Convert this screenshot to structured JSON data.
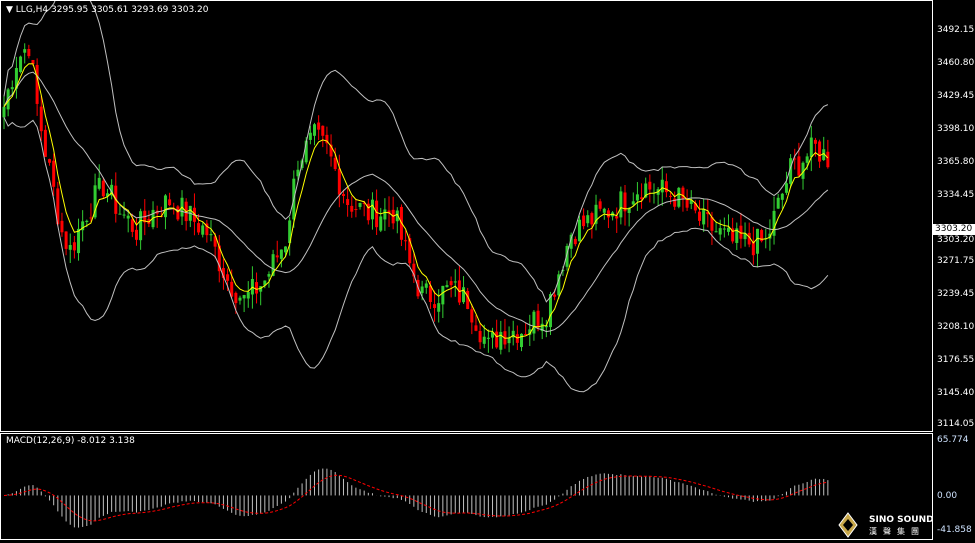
{
  "header": {
    "symbol": "LLG,H4",
    "ohlc": "3295.95 3305.61 3293.69 3303.20"
  },
  "price_axis": {
    "ticks": [
      "3492.15",
      "3460.80",
      "3429.45",
      "3398.10",
      "3365.80",
      "3334.45",
      "3303.20",
      "3271.75",
      "3239.45",
      "3208.10",
      "3176.55",
      "3145.40",
      "3114.05"
    ],
    "current": "3303.20"
  },
  "macd": {
    "label": "MACD(12,26,9) -8.012 3.138",
    "ticks": [
      "65.774",
      "0.00",
      "-41.858"
    ]
  },
  "logo": {
    "name": "SINO SOUND",
    "cn": "漢聲集團"
  },
  "colors": {
    "bull": "#32cd32",
    "bear": "#ff0000",
    "ma": "#ffff00",
    "bands": "#c0c0c0",
    "signal": "#ff0000",
    "hist": "#c0c0c0",
    "grid": "#ffffff"
  },
  "chart_data": {
    "type": "candlestick",
    "bars": 200,
    "ylim": [
      3114.05,
      3498
    ],
    "close_path": [
      [
        0,
        3420
      ],
      [
        3,
        3464
      ],
      [
        6,
        3480
      ],
      [
        8,
        3420
      ],
      [
        10,
        3378
      ],
      [
        14,
        3300
      ],
      [
        16,
        3283
      ],
      [
        20,
        3320
      ],
      [
        24,
        3345
      ],
      [
        28,
        3320
      ],
      [
        32,
        3302
      ],
      [
        36,
        3320
      ],
      [
        40,
        3330
      ],
      [
        44,
        3318
      ],
      [
        49,
        3300
      ],
      [
        54,
        3255
      ],
      [
        58,
        3235
      ],
      [
        63,
        3254
      ],
      [
        68,
        3293
      ],
      [
        71,
        3370
      ],
      [
        75,
        3390
      ],
      [
        78,
        3378
      ],
      [
        83,
        3330
      ],
      [
        88,
        3318
      ],
      [
        94,
        3320
      ],
      [
        98,
        3268
      ],
      [
        103,
        3240
      ],
      [
        108,
        3245
      ],
      [
        112,
        3236
      ],
      [
        117,
        3190
      ],
      [
        101,
        3240
      ],
      [
        120,
        3205
      ],
      [
        125,
        3207
      ],
      [
        131,
        3225
      ],
      [
        137,
        3300
      ],
      [
        142,
        3312
      ],
      [
        148,
        3325
      ],
      [
        154,
        3345
      ],
      [
        162,
        3335
      ],
      [
        168,
        3312
      ],
      [
        176,
        3290
      ],
      [
        184,
        3290
      ],
      [
        190,
        3360
      ],
      [
        196,
        3380
      ],
      [
        203,
        3360
      ],
      [
        209,
        3375
      ],
      [
        214,
        3350
      ],
      [
        219,
        3303
      ]
    ],
    "indicators": [
      "MA",
      "Bollinger Bands(20,2)",
      "MACD(12,26,9)"
    ],
    "macd_ylim": [
      -41.858,
      65.774
    ]
  }
}
